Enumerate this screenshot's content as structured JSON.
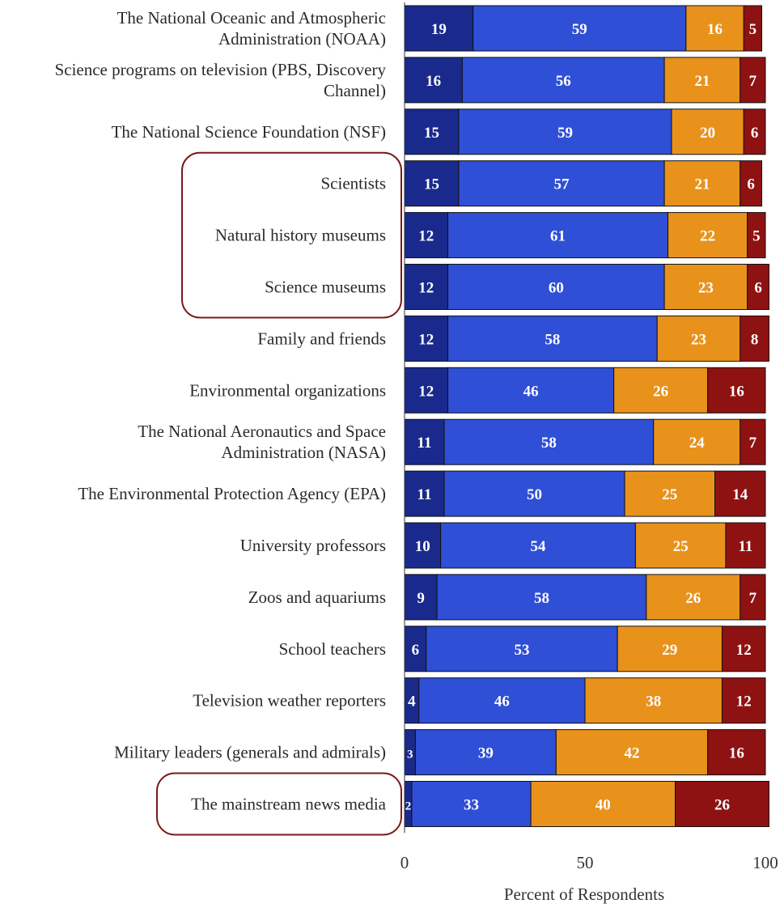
{
  "chart_data": {
    "type": "bar",
    "orientation": "horizontal",
    "stacked": true,
    "categories": [
      [
        "The National Oceanic and Atmospheric",
        "Administration (NOAA)"
      ],
      [
        "Science programs on television (PBS, Discovery",
        "Channel)"
      ],
      [
        "The National Science Foundation (NSF)"
      ],
      [
        "Scientists"
      ],
      [
        "Natural history museums"
      ],
      [
        "Science museums"
      ],
      [
        "Family and friends"
      ],
      [
        "Environmental organizations"
      ],
      [
        "The National Aeronautics and Space",
        "Administration (NASA)"
      ],
      [
        "The Environmental Protection Agency (EPA)"
      ],
      [
        "University professors"
      ],
      [
        "Zoos and aquariums"
      ],
      [
        "School teachers"
      ],
      [
        "Television weather reporters"
      ],
      [
        "Military leaders (generals and admirals)"
      ],
      [
        "The mainstream news media"
      ]
    ],
    "series": [
      {
        "color": "#1a2a8c",
        "values": [
          19,
          16,
          15,
          15,
          12,
          12,
          12,
          12,
          11,
          11,
          10,
          9,
          6,
          4,
          3,
          2
        ]
      },
      {
        "color": "#2f4fd6",
        "values": [
          59,
          56,
          59,
          57,
          61,
          60,
          58,
          46,
          58,
          50,
          54,
          58,
          53,
          46,
          39,
          33
        ]
      },
      {
        "color": "#e8921c",
        "values": [
          16,
          21,
          20,
          21,
          22,
          23,
          23,
          26,
          24,
          25,
          25,
          26,
          29,
          38,
          42,
          40
        ]
      },
      {
        "color": "#8e1212",
        "values": [
          5,
          7,
          6,
          6,
          5,
          6,
          8,
          16,
          7,
          14,
          11,
          7,
          12,
          12,
          16,
          26
        ]
      }
    ],
    "xaxis": {
      "ticks": [
        "0",
        "50",
        "100"
      ],
      "tick_values": [
        0,
        50,
        100
      ],
      "xlim": [
        0,
        100
      ]
    },
    "xlabel": "Percent of Respondents",
    "highlight_groups": [
      {
        "first": 3,
        "last": 5
      },
      {
        "first": 15,
        "last": 15
      }
    ],
    "highlight_color": "#7a1a1a",
    "grid": false,
    "legend": "none"
  }
}
